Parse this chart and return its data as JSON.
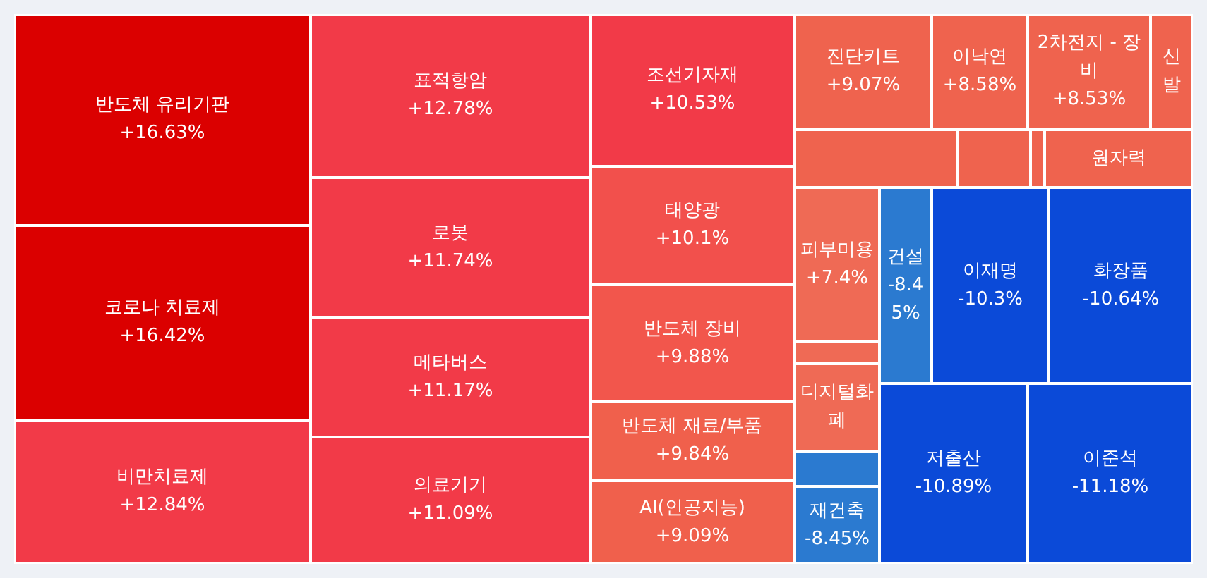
{
  "chart_data": {
    "type": "other",
    "categories": [
      "반도체 유리기판",
      "코로나 치료제",
      "비만치료제",
      "표적항암",
      "로봇",
      "메타버스",
      "의료기기",
      "조선기자재",
      "태양광",
      "반도체 장비",
      "반도체 재료/부품",
      "AI(인공지능)",
      "진단키트",
      "이낙연",
      "2차전지 - 장비",
      "신발",
      null,
      null,
      null,
      "원자력",
      "피부미용",
      null,
      "디지털화폐",
      null,
      "재건축",
      "건설",
      "이재명",
      "화장품",
      "저출산",
      "이준석"
    ],
    "values": [
      16.63,
      16.42,
      12.84,
      12.78,
      11.74,
      11.17,
      11.09,
      10.53,
      10.1,
      9.88,
      9.84,
      9.09,
      9.07,
      8.58,
      8.53,
      null,
      null,
      null,
      null,
      null,
      7.4,
      null,
      null,
      null,
      -8.45,
      -8.45,
      -10.3,
      -10.64,
      -10.89,
      -11.18
    ],
    "value_labels": [
      "+16.63%",
      "+16.42%",
      "+12.84%",
      "+12.78%",
      "+11.74%",
      "+11.17%",
      "+11.09%",
      "+10.53%",
      "+10.1%",
      "+9.88%",
      "+9.84%",
      "+9.09%",
      "+9.07%",
      "+8.58%",
      "+8.53%",
      null,
      null,
      null,
      null,
      null,
      "+7.4%",
      null,
      null,
      null,
      "-8.45%",
      "-8.45%",
      "-10.3%",
      "-10.64%",
      "-10.89%",
      "-11.18%"
    ],
    "colors": [
      "#db0000",
      "#db0000",
      "#f23a48",
      "#f23a48",
      "#f23a48",
      "#f23a48",
      "#f23a48",
      "#f23a48",
      "#f2504c",
      "#f2564c",
      "#f0604c",
      "#f0604c",
      "#ef634e",
      "#ef634e",
      "#ef634e",
      "#ef634e",
      "#ef634e",
      "#ef634e",
      "#ef634e",
      "#ef634e",
      "#ef6a55",
      "#ef6a55",
      "#ef6a55",
      "#2b7ad0",
      "#2b7ad0",
      "#2b7ad0",
      "#0b4ad8",
      "#0b4ad8",
      "#0b4ad8",
      "#0b4ad8"
    ]
  }
}
